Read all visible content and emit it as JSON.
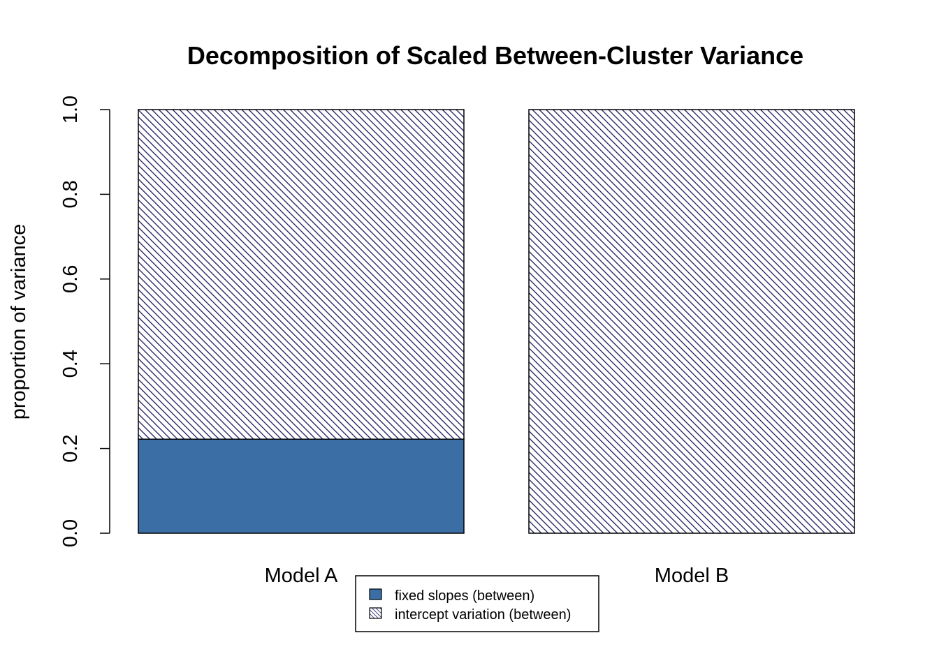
{
  "chart_data": {
    "type": "bar",
    "stacked": true,
    "title": "Decomposition of Scaled Between-Cluster Variance",
    "xlabel": "",
    "ylabel": "proportion of variance",
    "ylim": [
      0,
      1
    ],
    "yticks": [
      "0.0",
      "0.2",
      "0.4",
      "0.6",
      "0.8",
      "1.0"
    ],
    "categories": [
      "Model A",
      "Model B"
    ],
    "series": [
      {
        "name": "fixed slopes (between)",
        "values": [
          0.222,
          0.0
        ],
        "color": "#3a6ea5",
        "fill": "solid"
      },
      {
        "name": "intercept variation (between)",
        "values": [
          0.778,
          1.0
        ],
        "color": "#1a1a5e",
        "fill": "hatch"
      }
    ],
    "legend_position": "bottom-center"
  }
}
